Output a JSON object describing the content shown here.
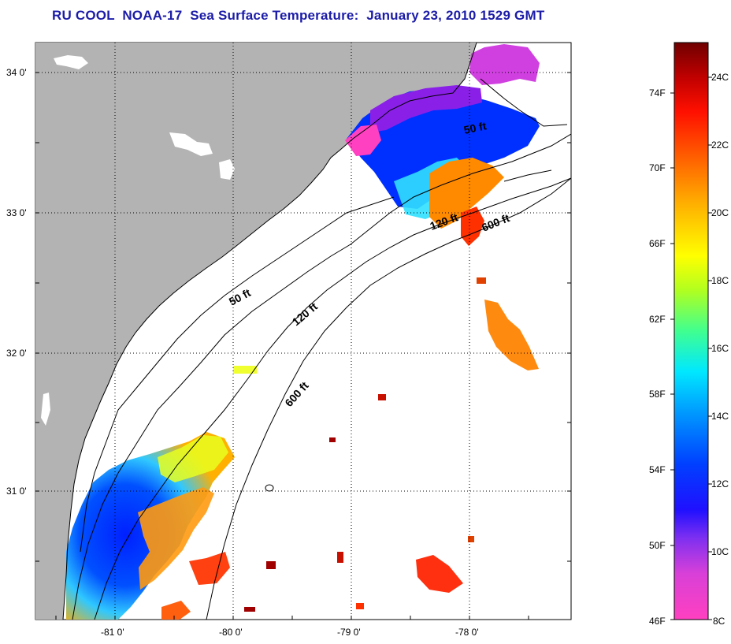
{
  "title": "RU COOL  NOAA-17  Sea Surface Temperature:  January 23, 2010 1529 GMT",
  "map": {
    "lat_ticks": [
      "34 0'",
      "33 0'",
      "32 0'",
      "31 0'"
    ],
    "lon_ticks": [
      "-81 0'",
      "-80 0'",
      "-79 0'",
      "-78 0'"
    ],
    "contour_labels": {
      "shelf_50": "50 ft",
      "shelf_120": "120 ft",
      "shelf_600": "600 ft",
      "ne_50": "50 ft",
      "ne_120": "120 ft",
      "ne_600": "600 ft"
    },
    "colors": {
      "land": "#b3b3b3",
      "ocean": "#ffffff",
      "grid": "#000000"
    }
  },
  "colorbar": {
    "fahrenheit_labels": [
      "74F",
      "70F",
      "66F",
      "62F",
      "58F",
      "54F",
      "50F",
      "46F"
    ],
    "celsius_labels": [
      "24C",
      "22C",
      "20C",
      "18C",
      "16C",
      "14C",
      "12C",
      "10C",
      "8C"
    ],
    "colors": [
      "#ff40c0",
      "#b040e8",
      "#6020ff",
      "#0000ff",
      "#0060ff",
      "#00d0ff",
      "#40ff80",
      "#d0ff00",
      "#ffff00",
      "#ffb000",
      "#ff6000",
      "#ff1000",
      "#c00000",
      "#800000"
    ]
  }
}
